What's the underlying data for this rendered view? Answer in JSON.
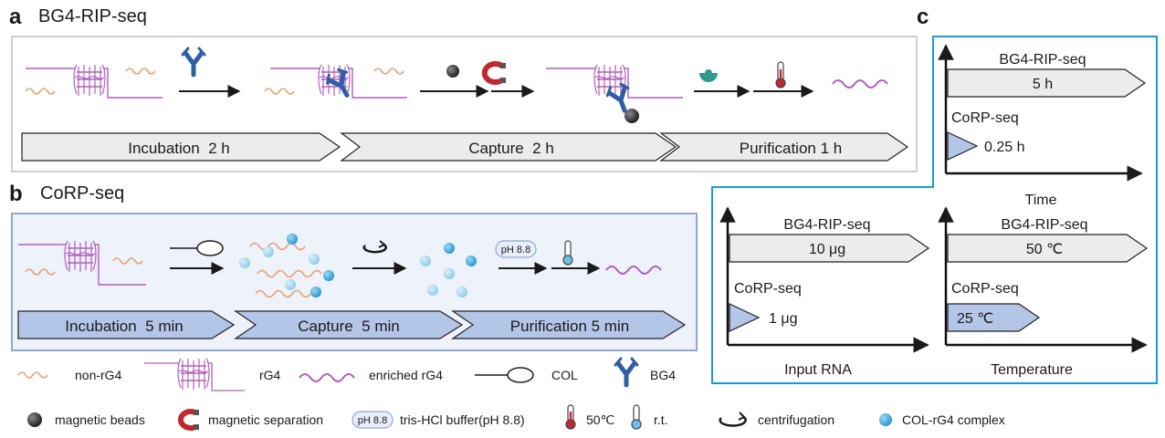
{
  "panel_a": {
    "letter": "a",
    "title": "BG4-RIP-seq",
    "steps": [
      "Incubation  2 h",
      "Capture  2 h",
      "Purification 1 h"
    ]
  },
  "panel_b": {
    "letter": "b",
    "title": "CoRP-seq",
    "buffer_badge": "pH 8.8",
    "steps": [
      "Incubation  5 min",
      "Capture  5 min",
      "Purification 5 min"
    ]
  },
  "panel_c": {
    "letter": "c",
    "time": {
      "top_label": "BG4-RIP-seq",
      "top_value": "5 h",
      "bottom_label": "CoRP-seq",
      "bottom_value": "0.25 h",
      "axis_label": "Time"
    },
    "input_rna": {
      "top_label": "BG4-RIP-seq",
      "top_value": "10 μg",
      "bottom_label": "CoRP-seq",
      "bottom_value": "1 μg",
      "axis_label": "Input RNA"
    },
    "temperature": {
      "top_label": "BG4-RIP-seq",
      "top_value": "50 ℃",
      "bottom_label": "CoRP-seq",
      "bottom_value": "25 ℃",
      "axis_label": "Temperature"
    }
  },
  "legend": {
    "row1": {
      "non_rg4": "non-rG4",
      "rg4": "rG4",
      "enriched": "enriched rG4",
      "col": "COL",
      "bg4": "BG4"
    },
    "row2": {
      "beads": "magnetic beads",
      "separation": "magnetic separation",
      "buffer_badge": "pH 8.8",
      "buffer": "tris-HCl buffer(pH 8.8)",
      "hot": "50℃",
      "rt": "r.t.",
      "centrifugation": "centrifugation",
      "complex": "COL-rG4 complex"
    }
  },
  "colors": {
    "blue_frame": "#1a9bd7",
    "panel_b_fill": "#eef2fa",
    "panel_b_border": "#8fa8cf",
    "step_blue": "#b4c6e7",
    "step_gray": "#ececec",
    "rna_orange": "#e8a070",
    "rna_purple": "#b35fbd",
    "antibody_blue": "#2f5ea8",
    "bead_dark": "#333333",
    "magnet_red": "#c0282e",
    "enzyme_teal": "#2e9a8a",
    "complex_blue": "#3aa7d8"
  }
}
